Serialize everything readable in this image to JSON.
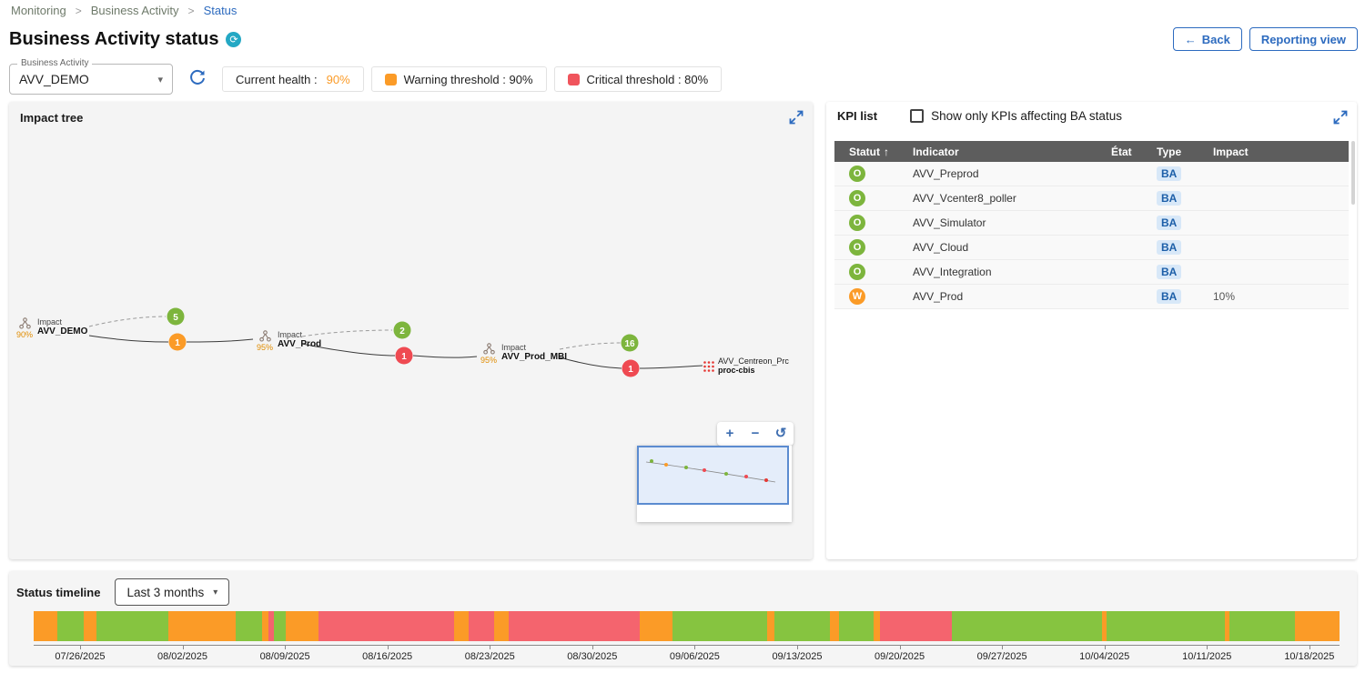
{
  "breadcrumb": {
    "items": [
      {
        "label": "Monitoring"
      },
      {
        "label": "Business Activity"
      },
      {
        "label": "Status"
      }
    ],
    "separator": ">"
  },
  "header": {
    "title": "Business Activity status",
    "back_label": "Back",
    "reporting_view_label": "Reporting view"
  },
  "icons": {
    "back_arrow": "←",
    "dropdown_caret": "▾",
    "sort_asc": "↑",
    "zoom_in": "+",
    "zoom_out": "−",
    "zoom_reset": "↺",
    "ba_status_glyph": "⟳"
  },
  "controls": {
    "ba_select": {
      "label": "Business Activity",
      "value": "AVV_DEMO"
    },
    "legend": {
      "current_health_label": "Current health :",
      "current_health_value": "90%",
      "warning_label": "Warning threshold : 90%",
      "critical_label": "Critical threshold : 80%"
    }
  },
  "impact_tree": {
    "title": "Impact tree",
    "nodes": [
      {
        "health": "90%",
        "impact_label": "Impact",
        "name": "AVV_DEMO",
        "ok_badge": "5",
        "problem_badge": "1"
      },
      {
        "health": "95%",
        "impact_label": "Impact",
        "name": "AVV_Prod",
        "ok_badge": "2",
        "problem_badge": "1"
      },
      {
        "health": "95%",
        "impact_label": "Impact",
        "name": "AVV_Prod_MBI",
        "ok_badge": "16",
        "problem_badge": "1"
      },
      {
        "name_line1": "AVV_Centreon_Prc",
        "name_line2": "proc-cbis"
      }
    ]
  },
  "kpi_list": {
    "title": "KPI list",
    "filter_label": "Show only KPIs affecting BA status",
    "columns": {
      "status": "Statut",
      "indicator": "Indicator",
      "etat": "État",
      "type": "Type",
      "impact": "Impact"
    },
    "rows": [
      {
        "status": "O",
        "indicator": "AVV_Preprod",
        "etat": "",
        "type": "BA",
        "impact": ""
      },
      {
        "status": "O",
        "indicator": "AVV_Vcenter8_poller",
        "etat": "",
        "type": "BA",
        "impact": ""
      },
      {
        "status": "O",
        "indicator": "AVV_Simulator",
        "etat": "",
        "type": "BA",
        "impact": ""
      },
      {
        "status": "O",
        "indicator": "AVV_Cloud",
        "etat": "",
        "type": "BA",
        "impact": ""
      },
      {
        "status": "O",
        "indicator": "AVV_Integration",
        "etat": "",
        "type": "BA",
        "impact": ""
      },
      {
        "status": "W",
        "indicator": "AVV_Prod",
        "etat": "",
        "type": "BA",
        "impact": "10%"
      }
    ]
  },
  "timeline": {
    "title": "Status timeline",
    "range_value": "Last 3 months",
    "dates": [
      "07/26/2025",
      "08/02/2025",
      "08/09/2025",
      "08/16/2025",
      "08/23/2025",
      "08/30/2025",
      "09/06/2025",
      "09/13/2025",
      "09/20/2025",
      "09/27/2025",
      "10/04/2025",
      "10/11/2025",
      "10/18/2025"
    ],
    "segments": [
      {
        "c": "orange",
        "w": 1.8
      },
      {
        "c": "green",
        "w": 2.0
      },
      {
        "c": "orange",
        "w": 1.0
      },
      {
        "c": "green",
        "w": 5.5
      },
      {
        "c": "orange",
        "w": 5.2
      },
      {
        "c": "green",
        "w": 2.0
      },
      {
        "c": "orange",
        "w": 0.5
      },
      {
        "c": "red",
        "w": 0.4
      },
      {
        "c": "green",
        "w": 0.9
      },
      {
        "c": "orange",
        "w": 2.5
      },
      {
        "c": "red",
        "w": 10.4
      },
      {
        "c": "orange",
        "w": 1.1
      },
      {
        "c": "red",
        "w": 2.0
      },
      {
        "c": "orange",
        "w": 1.1
      },
      {
        "c": "red",
        "w": 10.0
      },
      {
        "c": "orange",
        "w": 2.5
      },
      {
        "c": "green",
        "w": 7.3
      },
      {
        "c": "orange",
        "w": 0.5
      },
      {
        "c": "green",
        "w": 4.3
      },
      {
        "c": "orange",
        "w": 0.7
      },
      {
        "c": "green",
        "w": 2.6
      },
      {
        "c": "orange",
        "w": 0.5
      },
      {
        "c": "red",
        "w": 5.5
      },
      {
        "c": "green",
        "w": 11.5
      },
      {
        "c": "orange",
        "w": 0.4
      },
      {
        "c": "green",
        "w": 9.0
      },
      {
        "c": "orange",
        "w": 0.4
      },
      {
        "c": "green",
        "w": 5.0
      },
      {
        "c": "orange",
        "w": 3.4
      }
    ]
  },
  "colors": {
    "accent_blue": "#2d6bbf",
    "ok_green": "#7db53d",
    "warning_orange": "#fb9b27",
    "critical_red": "#f0545c",
    "timeline_green": "#86c440",
    "timeline_red": "#f4646e",
    "table_header_bg": "#5d5d5d",
    "teal_badge": "#24a8c4"
  }
}
